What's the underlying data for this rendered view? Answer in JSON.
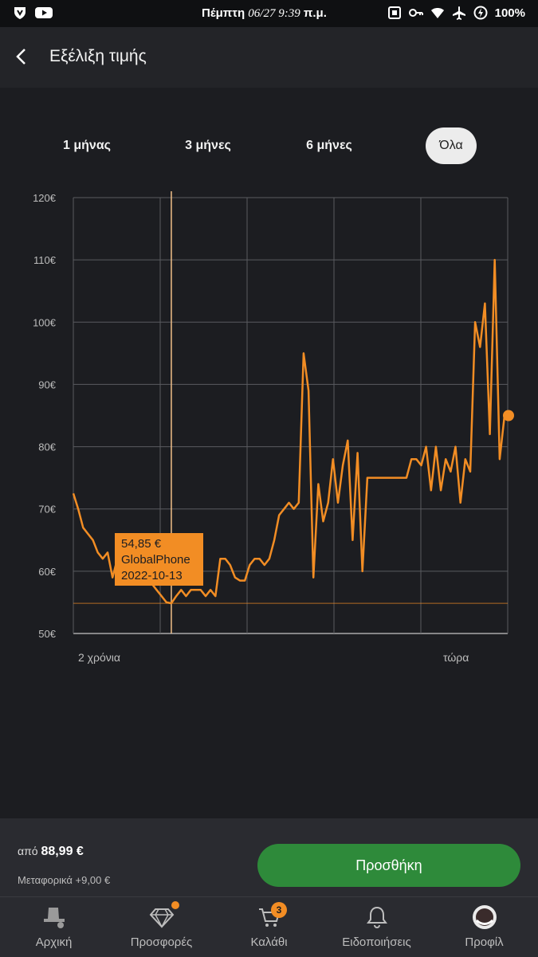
{
  "status_bar": {
    "day": "Πέμπτη",
    "datetime": "06/27 9:39",
    "ampm": "π.μ.",
    "battery": "100%"
  },
  "header": {
    "title": "Εξέλιξη τιμής"
  },
  "range_tabs": [
    {
      "label": "1 μήνας",
      "active": false
    },
    {
      "label": "3 μήνες",
      "active": false
    },
    {
      "label": "6 μήνες",
      "active": false
    },
    {
      "label": "Όλα",
      "active": true
    }
  ],
  "chart_data": {
    "type": "line",
    "x_labels": [
      "2 χρόνια",
      "τώρα"
    ],
    "y_ticks": [
      "50€",
      "60€",
      "70€",
      "80€",
      "90€",
      "100€",
      "110€",
      "120€"
    ],
    "ylim": [
      50,
      120
    ],
    "grid": true,
    "line_color": "#f28d24",
    "reference_line": 54.85,
    "series": [
      {
        "values": [
          72.5,
          70,
          67,
          66,
          65,
          63,
          62,
          63,
          59,
          62,
          63,
          62,
          63,
          64,
          62,
          60,
          58,
          57,
          56,
          55,
          54.85,
          56,
          57,
          56,
          57,
          57,
          57,
          56,
          57,
          56,
          62,
          62,
          61,
          59,
          58.5,
          58.5,
          61,
          62,
          62,
          61,
          62,
          65,
          69,
          70,
          71,
          70,
          71,
          95,
          89,
          59,
          74,
          68,
          71,
          78,
          71,
          77,
          81,
          65,
          79,
          60,
          75,
          75,
          75,
          75,
          75,
          75,
          75,
          75,
          75,
          78,
          78,
          77,
          80,
          73,
          80,
          73,
          78,
          76,
          80,
          71,
          78,
          76,
          100,
          96,
          103,
          82,
          110,
          78,
          85
        ],
        "current": 85
      }
    ]
  },
  "tooltip": {
    "price": "54,85 €",
    "shop": "GlobalPhone",
    "date": "2022-10-13"
  },
  "footer": {
    "from_label": "από",
    "price": "88,99 €",
    "shipping": "Μεταφορικά +9,00 €",
    "add_button": "Προσθήκη"
  },
  "nav": [
    {
      "label": "Αρχική",
      "icon": "home-hat-icon"
    },
    {
      "label": "Προσφορές",
      "icon": "diamond-icon"
    },
    {
      "label": "Καλάθι",
      "icon": "cart-icon",
      "badge": "3"
    },
    {
      "label": "Ειδοποιήσεις",
      "icon": "bell-icon"
    },
    {
      "label": "Προφίλ",
      "icon": "avatar"
    }
  ]
}
